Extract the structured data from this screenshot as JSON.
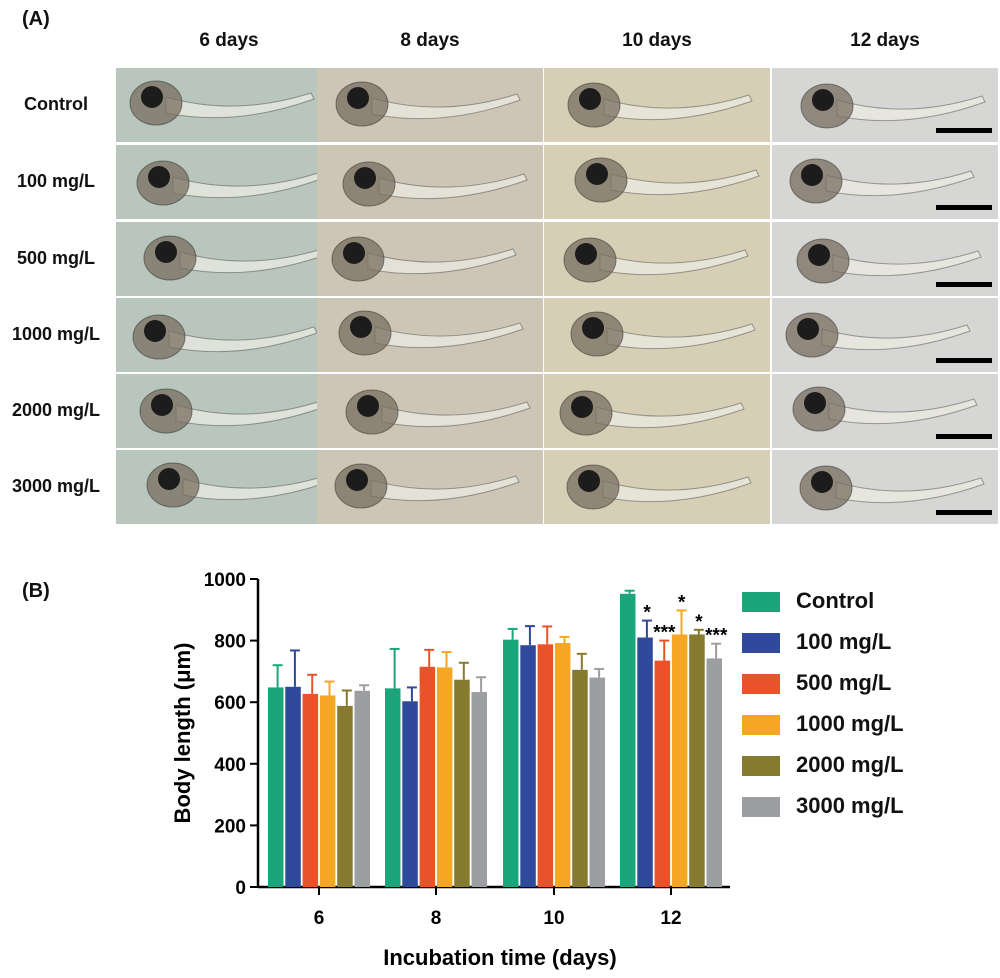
{
  "panel_a": {
    "label": "(A)",
    "columns": [
      "6 days",
      "8 days",
      "10 days",
      "12 days"
    ],
    "rows": [
      "Control",
      "100 mg/L",
      "500 mg/L",
      "1000 mg/L",
      "2000 mg/L",
      "3000 mg/L"
    ],
    "tile_backgrounds": [
      "#b8c6be",
      "#cdc6b7",
      "#d6cfb6",
      "#d6d6d4"
    ]
  },
  "panel_b": {
    "label": "(B)"
  },
  "chart_data": {
    "type": "bar",
    "title": "",
    "xlabel": "Incubation time (days)",
    "ylabel": "Body length (μm)",
    "ylim": [
      0,
      1000
    ],
    "yticks": [
      0,
      200,
      400,
      600,
      800,
      1000
    ],
    "categories": [
      "6",
      "8",
      "10",
      "12"
    ],
    "grid": false,
    "legend_position": "right",
    "series": [
      {
        "name": "Control",
        "color": "#1aa67a",
        "values": [
          648,
          645,
          803,
          952
        ],
        "errors": [
          72,
          128,
          35,
          10
        ],
        "significance": [
          "",
          "",
          "",
          ""
        ]
      },
      {
        "name": "100 mg/L",
        "color": "#2f4a9c",
        "values": [
          650,
          603,
          785,
          810
        ],
        "errors": [
          118,
          45,
          62,
          55
        ],
        "significance": [
          "",
          "",
          "",
          "*"
        ]
      },
      {
        "name": "500 mg/L",
        "color": "#e8532a",
        "values": [
          627,
          715,
          788,
          735
        ],
        "errors": [
          62,
          55,
          58,
          65
        ],
        "significance": [
          "",
          "",
          "",
          "***"
        ]
      },
      {
        "name": "1000 mg/L",
        "color": "#f5a623",
        "values": [
          622,
          713,
          792,
          820
        ],
        "errors": [
          45,
          50,
          20,
          78
        ],
        "significance": [
          "",
          "",
          "",
          "*"
        ]
      },
      {
        "name": "2000 mg/L",
        "color": "#857a2e",
        "values": [
          588,
          673,
          705,
          820
        ],
        "errors": [
          50,
          55,
          52,
          15
        ],
        "significance": [
          "",
          "",
          "",
          "*"
        ]
      },
      {
        "name": "3000 mg/L",
        "color": "#9c9ea2",
        "values": [
          637,
          633,
          680,
          742
        ],
        "errors": [
          18,
          48,
          28,
          48
        ],
        "significance": [
          "",
          "",
          "",
          "***"
        ]
      }
    ]
  }
}
